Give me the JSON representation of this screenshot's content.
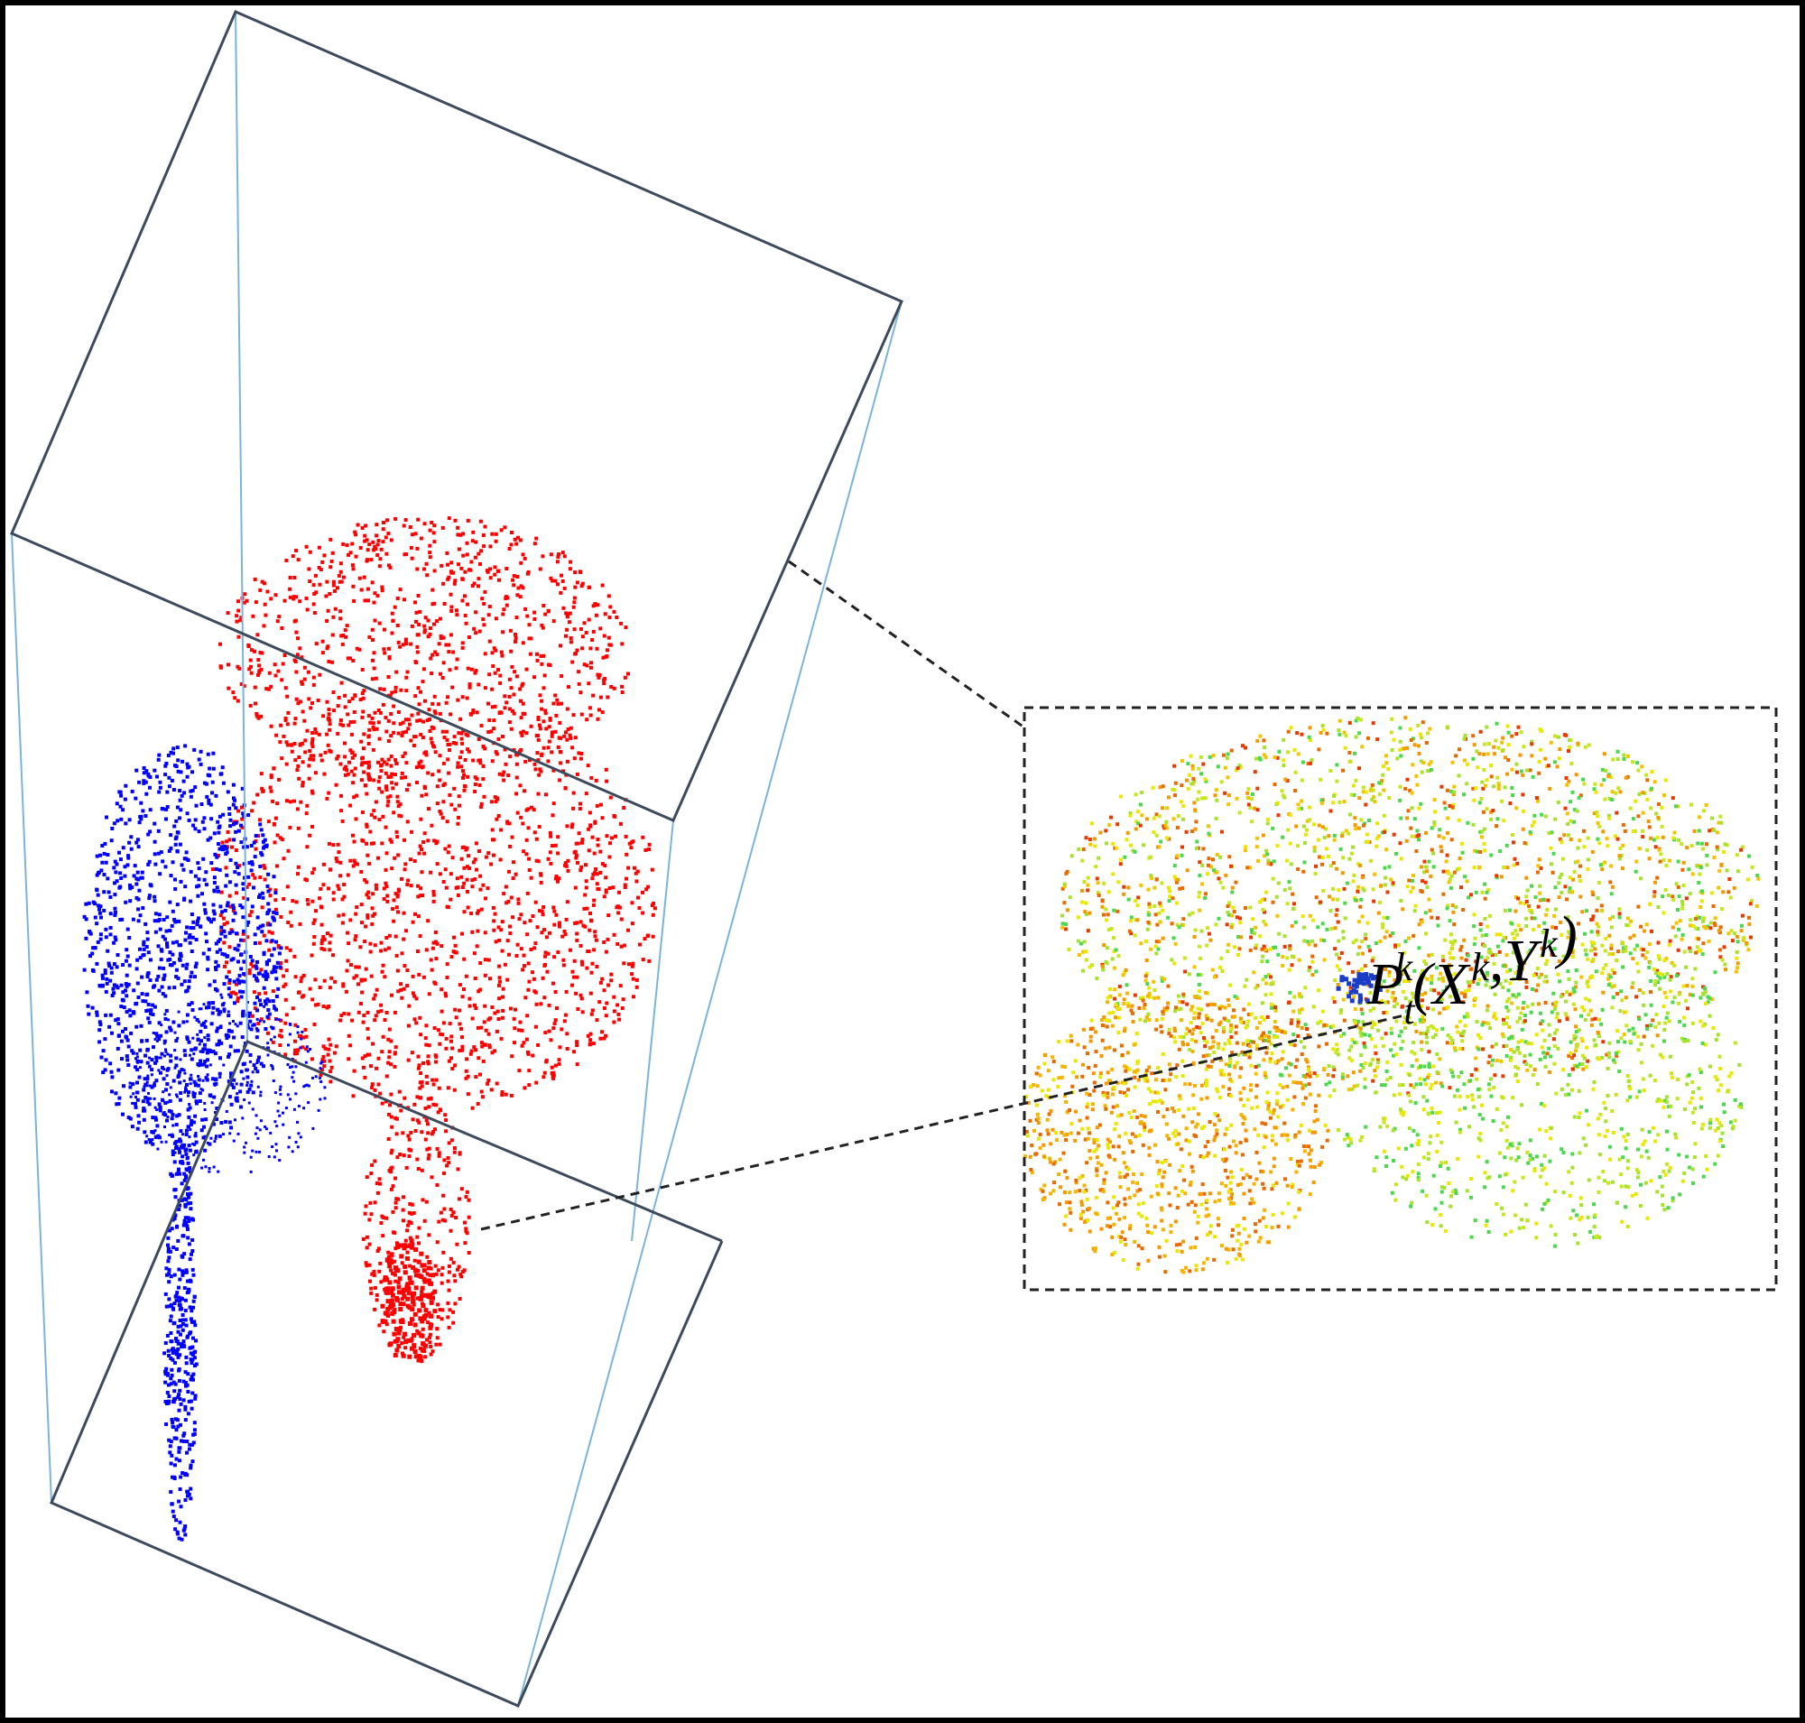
{
  "annotation": {
    "symbol": "P",
    "subscript": "t",
    "superscript": "k",
    "open": "(",
    "args": [
      {
        "symbol": "X",
        "superscript": "k"
      },
      {
        "symbol": "Y",
        "superscript": "k"
      }
    ],
    "separator": ",",
    "close": ")"
  }
}
